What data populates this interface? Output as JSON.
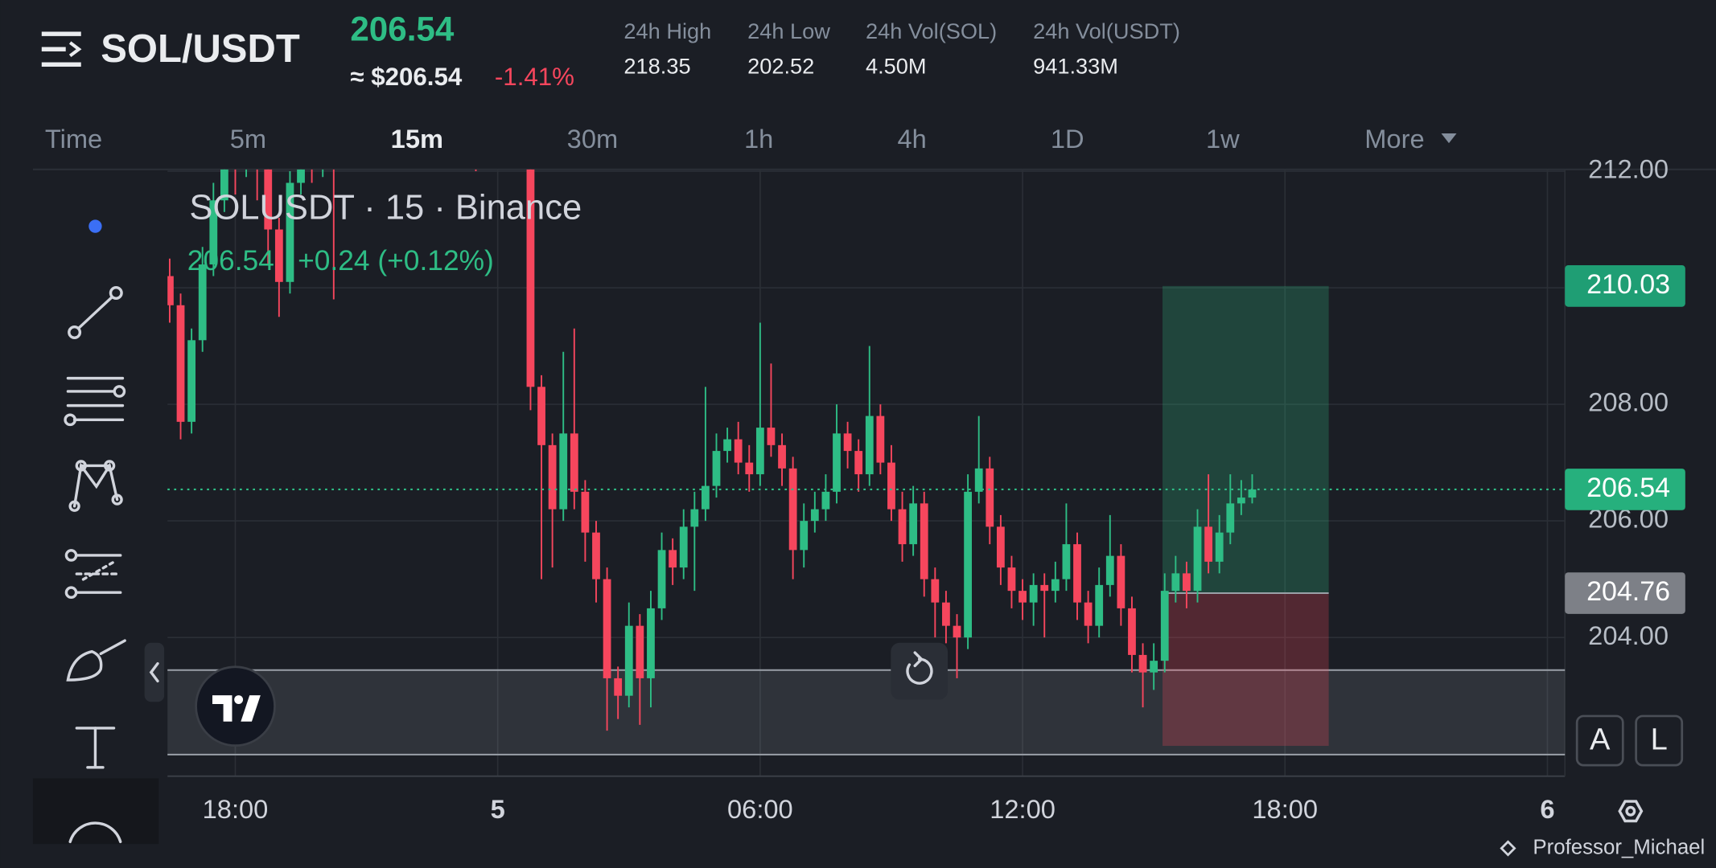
{
  "header": {
    "symbol": "SOL/USDT",
    "price": "206.54",
    "usd_price": "≈ $206.54",
    "change": "-1.41%",
    "stats": [
      {
        "label": "24h High",
        "value": "218.35"
      },
      {
        "label": "24h Low",
        "value": "202.52"
      },
      {
        "label": "24h Vol(SOL)",
        "value": "4.50M"
      },
      {
        "label": "24h Vol(USDT)",
        "value": "941.33M"
      }
    ]
  },
  "timeframes": [
    "Time",
    "5m",
    "15m",
    "30m",
    "1h",
    "4h",
    "1D",
    "1w",
    "More"
  ],
  "legend": {
    "title": "SOLUSDT · 15 · Binance",
    "price": "206.54",
    "change": "+0.24 (+0.12%)"
  },
  "buttons": [
    "A",
    "L"
  ],
  "watermark": "Professor_Michael",
  "chart_data": {
    "type": "candlestick",
    "up_color": "#2ebd85",
    "down_color": "#f6465d",
    "x": [
      -7.5,
      -7.25,
      -7,
      -6.75,
      -6.5,
      -6.25,
      -6,
      -5.75,
      -5.5,
      -5.25,
      -5,
      -4.75,
      -4.5,
      -4.25,
      -4,
      -3.75,
      -3.5,
      -3.25,
      -3,
      -2.75,
      -2.5,
      -2.25,
      -2,
      -1.75,
      -1.5,
      -1.25,
      -1,
      -0.75,
      -0.5,
      -0.25,
      0,
      0.25,
      0.5,
      0.75,
      1,
      1.25,
      1.5,
      1.75,
      2,
      2.25,
      2.5,
      2.75,
      3,
      3.25,
      3.5,
      3.75,
      4,
      4.25,
      4.5,
      4.75,
      5,
      5.25,
      5.5,
      5.75,
      6,
      6.25,
      6.5,
      6.75,
      7,
      7.25,
      7.5,
      7.75,
      8,
      8.25,
      8.5,
      8.75,
      9,
      9.25,
      9.5,
      9.75,
      10,
      10.25,
      10.5,
      10.75,
      11,
      11.25,
      11.5,
      11.75,
      12,
      12.25,
      12.5,
      12.75,
      13,
      13.25,
      13.5,
      13.75,
      14,
      14.25,
      14.5,
      14.75,
      15,
      15.25,
      15.5,
      15.75,
      16,
      16.25,
      16.5,
      16.75,
      17,
      17.25
    ],
    "open": [
      210.2,
      209.7,
      207.7,
      209.1,
      210.4,
      211.5,
      212.3,
      212.1,
      212.6,
      212.2,
      211.0,
      210.1,
      211.8,
      212.3,
      212.1,
      212.5,
      212.4,
      212.8,
      213.0,
      212.7,
      213.2,
      213.4,
      213.1,
      212.9,
      213.3,
      213.0,
      212.8,
      213.1,
      212.7,
      212.4,
      212.9,
      213.2,
      213.0,
      212.6,
      208.3,
      207.3,
      206.2,
      207.5,
      206.5,
      205.8,
      205.0,
      203.3,
      203.0,
      204.2,
      203.3,
      204.5,
      205.5,
      205.2,
      205.9,
      206.2,
      206.6,
      207.2,
      207.4,
      207.0,
      206.8,
      207.6,
      207.3,
      206.9,
      205.5,
      206.0,
      206.2,
      206.5,
      207.5,
      207.2,
      206.8,
      207.8,
      207.0,
      206.2,
      205.6,
      206.3,
      205.0,
      204.6,
      204.2,
      204.0,
      206.5,
      206.9,
      205.9,
      205.2,
      204.8,
      204.6,
      204.9,
      204.8,
      205.0,
      205.6,
      204.6,
      204.2,
      204.9,
      205.4,
      204.5,
      203.7,
      203.4,
      203.6,
      204.8,
      205.1,
      204.8,
      205.9,
      205.3,
      205.8,
      206.3,
      206.4
    ],
    "high": [
      210.5,
      209.9,
      209.3,
      210.7,
      211.8,
      212.6,
      212.6,
      212.9,
      212.9,
      212.4,
      211.2,
      212.0,
      212.6,
      212.5,
      212.8,
      212.7,
      213.0,
      213.2,
      213.2,
      213.4,
      213.6,
      213.6,
      213.3,
      213.5,
      213.5,
      213.2,
      213.3,
      213.3,
      212.9,
      213.1,
      213.4,
      213.4,
      213.2,
      212.8,
      208.5,
      207.5,
      208.9,
      209.3,
      206.7,
      206.0,
      205.2,
      203.5,
      204.6,
      204.4,
      204.8,
      205.8,
      205.7,
      206.2,
      206.5,
      208.3,
      207.5,
      207.6,
      207.7,
      207.3,
      209.4,
      208.7,
      207.5,
      207.1,
      206.3,
      206.5,
      206.8,
      208.0,
      207.7,
      207.4,
      209.0,
      208.0,
      207.3,
      206.5,
      206.6,
      206.5,
      205.2,
      204.8,
      204.4,
      206.8,
      207.8,
      207.1,
      206.1,
      205.4,
      205.0,
      205.1,
      205.1,
      205.3,
      206.3,
      205.8,
      204.8,
      205.2,
      206.1,
      205.6,
      204.7,
      203.9,
      203.9,
      205.1,
      205.4,
      205.3,
      206.2,
      206.8,
      206.1,
      206.8,
      206.7,
      206.8
    ],
    "low": [
      209.4,
      207.4,
      207.5,
      208.9,
      210.2,
      211.3,
      211.6,
      211.9,
      211.5,
      210.4,
      209.5,
      209.9,
      211.6,
      211.8,
      211.9,
      209.8,
      212.2,
      212.6,
      212.5,
      212.5,
      213.0,
      212.9,
      212.7,
      212.7,
      212.8,
      212.6,
      212.6,
      212.5,
      212.0,
      212.2,
      212.7,
      212.8,
      212.4,
      207.9,
      205.0,
      205.2,
      206.0,
      206.2,
      205.3,
      204.6,
      202.4,
      202.6,
      202.8,
      202.5,
      202.8,
      204.3,
      204.9,
      205.0,
      204.8,
      206.0,
      206.4,
      207.0,
      206.8,
      206.5,
      206.6,
      207.1,
      206.6,
      205.0,
      205.2,
      205.8,
      206.0,
      206.3,
      206.9,
      206.5,
      206.6,
      206.8,
      206.0,
      205.3,
      205.4,
      204.7,
      204.0,
      203.9,
      203.3,
      203.8,
      206.3,
      205.6,
      204.9,
      204.5,
      204.3,
      204.2,
      204.0,
      204.6,
      204.8,
      204.3,
      203.9,
      204.0,
      204.7,
      204.2,
      203.4,
      202.8,
      203.1,
      203.4,
      204.6,
      204.5,
      204.6,
      205.1,
      205.1,
      205.6,
      206.1,
      206.3
    ],
    "close": [
      209.7,
      207.7,
      209.1,
      210.4,
      211.5,
      212.3,
      212.1,
      212.6,
      212.2,
      211.0,
      210.1,
      211.8,
      212.3,
      212.1,
      212.5,
      212.4,
      212.8,
      213.0,
      212.7,
      213.2,
      213.4,
      213.1,
      212.9,
      213.3,
      213.0,
      212.8,
      213.1,
      212.7,
      212.4,
      212.9,
      213.2,
      213.0,
      212.6,
      208.3,
      207.3,
      206.2,
      207.5,
      206.5,
      205.8,
      205.0,
      203.3,
      203.0,
      204.2,
      203.3,
      204.5,
      205.5,
      205.2,
      205.9,
      206.2,
      206.6,
      207.2,
      207.4,
      207.0,
      206.8,
      207.6,
      207.3,
      206.9,
      205.5,
      206.0,
      206.2,
      206.5,
      207.5,
      207.2,
      206.8,
      207.8,
      207.0,
      206.2,
      205.6,
      206.3,
      205.0,
      204.6,
      204.2,
      204.0,
      206.5,
      206.9,
      205.9,
      205.2,
      204.8,
      204.6,
      204.9,
      204.8,
      205.0,
      205.6,
      204.6,
      204.2,
      204.9,
      205.4,
      204.5,
      203.7,
      203.4,
      203.6,
      204.8,
      205.1,
      204.8,
      205.9,
      205.3,
      205.8,
      206.3,
      206.4,
      206.54
    ],
    "xlim": [
      -7.55,
      24.4
    ],
    "xticks": [
      {
        "value": -6,
        "label": "18:00"
      },
      {
        "value": 0,
        "label": "5"
      },
      {
        "value": 6,
        "label": "06:00"
      },
      {
        "value": 12,
        "label": "12:00"
      },
      {
        "value": 18,
        "label": "18:00"
      },
      {
        "value": 24,
        "label": "6"
      }
    ],
    "ylim": [
      201.62,
      212.03
    ],
    "yticks": [
      {
        "value": 204,
        "label": "204.00"
      },
      {
        "value": 206,
        "label": "206.00"
      },
      {
        "value": 208,
        "label": "208.00"
      },
      {
        "value": 210,
        "label": "210.00"
      },
      {
        "value": 212,
        "label": "212.00"
      }
    ],
    "grid": true,
    "last_price": 206.54,
    "position": {
      "x": [
        15.2,
        19.0
      ],
      "target": 210.03,
      "entry": 204.76,
      "stop": 202.14
    },
    "rectangle": {
      "high": 203.44,
      "low": 201.99
    }
  }
}
